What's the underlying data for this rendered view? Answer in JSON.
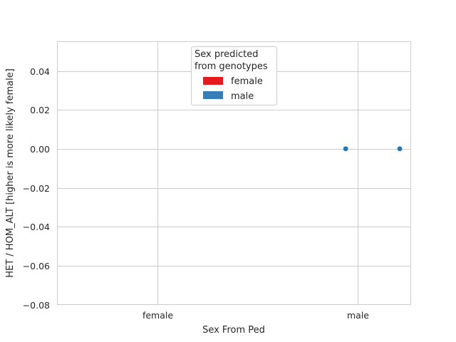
{
  "chart_data": {
    "type": "scatter",
    "xlabel": "Sex From Ped",
    "ylabel": "HET / HOM_ALT [higher is more likely female]",
    "categories": [
      "female",
      "male"
    ],
    "ylim": [
      -0.08,
      0.055
    ],
    "yticks": [
      {
        "value": 0.04,
        "label": "0.04"
      },
      {
        "value": 0.02,
        "label": "0.02"
      },
      {
        "value": 0.0,
        "label": "0.00"
      },
      {
        "value": -0.02,
        "label": "−0.02"
      },
      {
        "value": -0.04,
        "label": "−0.04"
      },
      {
        "value": -0.06,
        "label": "−0.06"
      },
      {
        "value": -0.08,
        "label": "−0.08"
      }
    ],
    "grid": true,
    "legend": {
      "title_lines": [
        "Sex predicted",
        "from genotypes"
      ],
      "placement": "upper-center",
      "entries": [
        {
          "label": "female",
          "color": "#e41a1c"
        },
        {
          "label": "male",
          "color": "#377eb8"
        }
      ]
    },
    "series": [
      {
        "name": "male",
        "color": "#1f77b4",
        "points": [
          {
            "category": "male",
            "offset": -0.06,
            "y": 0.0
          },
          {
            "category": "male",
            "offset": 0.21,
            "y": 0.0
          }
        ]
      }
    ]
  }
}
